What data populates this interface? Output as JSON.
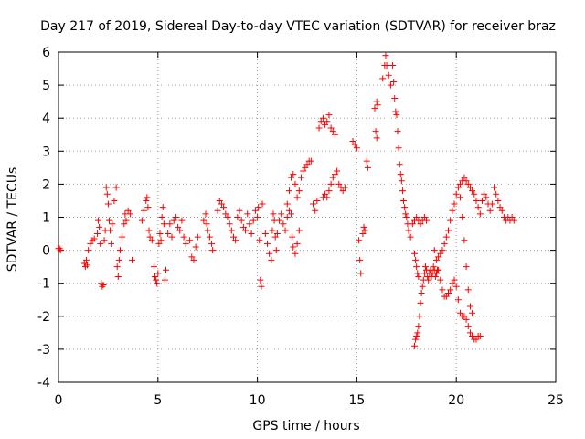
{
  "chart_data": {
    "type": "scatter",
    "title": "Day 217 of 2019, Sidereal Day-to-day VTEC variation (SDTVAR) for receiver braz",
    "xlabel": "GPS time / hours",
    "ylabel": "SDTVAR / TECUs",
    "xlim": [
      0,
      25
    ],
    "ylim": [
      -4,
      6
    ],
    "xticks": [
      0,
      5,
      10,
      15,
      20,
      25
    ],
    "yticks": [
      -4,
      -3,
      -2,
      -1,
      0,
      1,
      2,
      3,
      4,
      5,
      6
    ],
    "xtick_labels": [
      "0",
      "5",
      "10",
      "15",
      "20",
      "25"
    ],
    "ytick_labels": [
      "-4",
      "-3",
      "-2",
      "-1",
      "0",
      "1",
      "2",
      "3",
      "4",
      "5",
      "6"
    ],
    "grid": true,
    "marker": "+",
    "marker_color": "#ff0000",
    "series": [
      {
        "name": "SDTVAR",
        "points": [
          [
            0.0,
            0.05
          ],
          [
            0.05,
            0.05
          ],
          [
            0.1,
            0.0
          ],
          [
            1.3,
            -0.4
          ],
          [
            1.35,
            -0.5
          ],
          [
            1.4,
            -0.3
          ],
          [
            1.45,
            -0.45
          ],
          [
            1.5,
            0.0
          ],
          [
            1.6,
            0.2
          ],
          [
            1.7,
            0.3
          ],
          [
            1.8,
            0.35
          ],
          [
            1.95,
            0.5
          ],
          [
            2.0,
            0.9
          ],
          [
            2.05,
            0.7
          ],
          [
            2.1,
            0.2
          ],
          [
            2.15,
            -1.0
          ],
          [
            2.2,
            -1.1
          ],
          [
            2.25,
            -1.05
          ],
          [
            2.3,
            0.3
          ],
          [
            2.35,
            0.6
          ],
          [
            2.4,
            1.9
          ],
          [
            2.45,
            1.7
          ],
          [
            2.5,
            1.4
          ],
          [
            2.55,
            0.9
          ],
          [
            2.6,
            0.6
          ],
          [
            2.65,
            0.2
          ],
          [
            2.7,
            0.8
          ],
          [
            2.8,
            1.5
          ],
          [
            2.9,
            1.9
          ],
          [
            2.95,
            -0.5
          ],
          [
            3.0,
            -0.8
          ],
          [
            3.05,
            -0.3
          ],
          [
            3.1,
            0.0
          ],
          [
            3.2,
            0.4
          ],
          [
            3.3,
            0.8
          ],
          [
            3.35,
            1.1
          ],
          [
            3.4,
            0.9
          ],
          [
            3.5,
            1.2
          ],
          [
            3.6,
            1.1
          ],
          [
            3.7,
            -0.3
          ],
          [
            4.2,
            0.9
          ],
          [
            4.3,
            1.2
          ],
          [
            4.4,
            1.5
          ],
          [
            4.45,
            1.6
          ],
          [
            4.5,
            1.3
          ],
          [
            4.55,
            0.6
          ],
          [
            4.6,
            0.4
          ],
          [
            4.7,
            0.3
          ],
          [
            4.8,
            -0.5
          ],
          [
            4.85,
            -0.8
          ],
          [
            4.9,
            -0.9
          ],
          [
            4.95,
            -1.0
          ],
          [
            5.0,
            -0.7
          ],
          [
            5.05,
            0.2
          ],
          [
            5.1,
            0.5
          ],
          [
            5.15,
            0.3
          ],
          [
            5.2,
            1.0
          ],
          [
            5.25,
            1.3
          ],
          [
            5.3,
            0.8
          ],
          [
            5.35,
            -0.9
          ],
          [
            5.4,
            -0.6
          ],
          [
            5.5,
            0.5
          ],
          [
            5.6,
            0.8
          ],
          [
            5.7,
            0.4
          ],
          [
            5.8,
            0.9
          ],
          [
            5.9,
            1.0
          ],
          [
            6.0,
            0.7
          ],
          [
            6.1,
            0.6
          ],
          [
            6.2,
            0.9
          ],
          [
            6.3,
            0.4
          ],
          [
            6.4,
            0.2
          ],
          [
            6.6,
            0.3
          ],
          [
            6.7,
            -0.2
          ],
          [
            6.8,
            -0.3
          ],
          [
            6.9,
            0.1
          ],
          [
            7.0,
            0.4
          ],
          [
            7.3,
            0.9
          ],
          [
            7.4,
            1.1
          ],
          [
            7.45,
            0.8
          ],
          [
            7.5,
            0.6
          ],
          [
            7.6,
            0.4
          ],
          [
            7.7,
            0.2
          ],
          [
            7.75,
            0.0
          ],
          [
            8.0,
            1.2
          ],
          [
            8.1,
            1.5
          ],
          [
            8.2,
            1.4
          ],
          [
            8.3,
            1.3
          ],
          [
            8.4,
            1.1
          ],
          [
            8.5,
            1.0
          ],
          [
            8.6,
            0.8
          ],
          [
            8.7,
            0.6
          ],
          [
            8.8,
            0.4
          ],
          [
            8.9,
            0.3
          ],
          [
            9.0,
            1.0
          ],
          [
            9.1,
            1.2
          ],
          [
            9.2,
            0.9
          ],
          [
            9.3,
            0.7
          ],
          [
            9.4,
            0.6
          ],
          [
            9.5,
            1.1
          ],
          [
            9.6,
            0.8
          ],
          [
            9.7,
            0.5
          ],
          [
            9.8,
            0.9
          ],
          [
            9.9,
            1.2
          ],
          [
            10.0,
            1.0
          ],
          [
            10.05,
            1.3
          ],
          [
            10.1,
            0.3
          ],
          [
            10.15,
            -0.9
          ],
          [
            10.2,
            -1.1
          ],
          [
            10.25,
            1.4
          ],
          [
            10.4,
            0.5
          ],
          [
            10.5,
            0.2
          ],
          [
            10.6,
            -0.1
          ],
          [
            10.7,
            -0.3
          ],
          [
            10.75,
            0.6
          ],
          [
            10.8,
            1.1
          ],
          [
            10.85,
            0.9
          ],
          [
            10.9,
            0.4
          ],
          [
            10.95,
            0.0
          ],
          [
            11.0,
            0.5
          ],
          [
            11.1,
            0.9
          ],
          [
            11.2,
            1.1
          ],
          [
            11.3,
            0.8
          ],
          [
            11.4,
            0.6
          ],
          [
            11.5,
            1.0
          ],
          [
            11.6,
            1.2
          ],
          [
            11.7,
            1.1
          ],
          [
            11.75,
            0.4
          ],
          [
            11.8,
            0.1
          ],
          [
            11.9,
            -0.1
          ],
          [
            12.0,
            0.2
          ],
          [
            12.1,
            0.6
          ],
          [
            11.5,
            1.4
          ],
          [
            11.6,
            1.8
          ],
          [
            11.7,
            2.2
          ],
          [
            11.8,
            2.3
          ],
          [
            11.9,
            2.0
          ],
          [
            12.0,
            1.6
          ],
          [
            12.1,
            1.8
          ],
          [
            12.2,
            2.2
          ],
          [
            12.3,
            2.4
          ],
          [
            12.4,
            2.5
          ],
          [
            12.5,
            2.6
          ],
          [
            12.6,
            2.7
          ],
          [
            12.7,
            2.7
          ],
          [
            12.8,
            1.4
          ],
          [
            12.9,
            1.2
          ],
          [
            13.0,
            1.5
          ],
          [
            13.1,
            3.7
          ],
          [
            13.2,
            3.9
          ],
          [
            13.3,
            4.0
          ],
          [
            13.4,
            3.8
          ],
          [
            13.5,
            3.9
          ],
          [
            13.6,
            4.1
          ],
          [
            13.7,
            3.7
          ],
          [
            13.8,
            3.6
          ],
          [
            13.9,
            3.5
          ],
          [
            13.3,
            1.6
          ],
          [
            13.4,
            1.7
          ],
          [
            13.5,
            1.6
          ],
          [
            13.6,
            1.8
          ],
          [
            13.7,
            2.0
          ],
          [
            13.8,
            2.2
          ],
          [
            13.9,
            2.3
          ],
          [
            14.0,
            2.4
          ],
          [
            14.1,
            2.0
          ],
          [
            14.2,
            1.9
          ],
          [
            14.3,
            1.8
          ],
          [
            14.4,
            1.9
          ],
          [
            14.8,
            3.3
          ],
          [
            14.9,
            3.2
          ],
          [
            15.0,
            3.1
          ],
          [
            15.1,
            0.3
          ],
          [
            15.15,
            -0.3
          ],
          [
            15.2,
            -0.7
          ],
          [
            15.3,
            0.5
          ],
          [
            15.35,
            0.7
          ],
          [
            15.4,
            0.6
          ],
          [
            15.5,
            2.7
          ],
          [
            15.55,
            2.5
          ],
          [
            15.9,
            4.3
          ],
          [
            16.0,
            4.5
          ],
          [
            16.05,
            4.4
          ],
          [
            15.95,
            3.6
          ],
          [
            16.0,
            3.4
          ],
          [
            16.3,
            5.2
          ],
          [
            16.4,
            5.6
          ],
          [
            16.45,
            5.9
          ],
          [
            16.5,
            5.6
          ],
          [
            16.6,
            5.3
          ],
          [
            16.7,
            5.0
          ],
          [
            16.8,
            5.6
          ],
          [
            16.85,
            5.1
          ],
          [
            16.9,
            4.6
          ],
          [
            16.95,
            4.2
          ],
          [
            17.0,
            4.1
          ],
          [
            17.05,
            3.6
          ],
          [
            17.1,
            3.1
          ],
          [
            17.15,
            2.6
          ],
          [
            17.2,
            2.3
          ],
          [
            17.25,
            2.1
          ],
          [
            17.3,
            1.8
          ],
          [
            17.35,
            1.5
          ],
          [
            17.4,
            1.3
          ],
          [
            17.45,
            1.1
          ],
          [
            17.5,
            1.0
          ],
          [
            17.55,
            0.8
          ],
          [
            17.6,
            0.6
          ],
          [
            17.7,
            0.4
          ],
          [
            17.8,
            0.8
          ],
          [
            17.9,
            0.9
          ],
          [
            18.0,
            1.0
          ],
          [
            18.1,
            0.9
          ],
          [
            18.2,
            0.8
          ],
          [
            18.3,
            0.9
          ],
          [
            18.4,
            1.0
          ],
          [
            18.5,
            0.9
          ],
          [
            17.9,
            -2.9
          ],
          [
            17.95,
            -2.7
          ],
          [
            18.0,
            -2.6
          ],
          [
            18.05,
            -2.5
          ],
          [
            18.1,
            -2.3
          ],
          [
            18.15,
            -2.0
          ],
          [
            18.2,
            -1.6
          ],
          [
            18.25,
            -1.3
          ],
          [
            18.3,
            -1.1
          ],
          [
            18.35,
            -0.9
          ],
          [
            18.4,
            -0.7
          ],
          [
            18.45,
            -0.5
          ],
          [
            18.5,
            -0.6
          ],
          [
            18.55,
            -0.8
          ],
          [
            18.6,
            -0.9
          ],
          [
            18.65,
            -0.7
          ],
          [
            18.7,
            -0.6
          ],
          [
            18.75,
            -0.8
          ],
          [
            18.8,
            -0.7
          ],
          [
            18.85,
            -0.5
          ],
          [
            18.9,
            -0.6
          ],
          [
            18.95,
            -0.8
          ],
          [
            19.0,
            -0.7
          ],
          [
            19.05,
            -0.6
          ],
          [
            17.9,
            -0.1
          ],
          [
            17.95,
            -0.3
          ],
          [
            18.0,
            -0.5
          ],
          [
            18.05,
            -0.7
          ],
          [
            18.1,
            -0.8
          ],
          [
            19.1,
            -0.2
          ],
          [
            19.2,
            -0.1
          ],
          [
            19.3,
            0.0
          ],
          [
            19.4,
            0.2
          ],
          [
            19.5,
            0.4
          ],
          [
            19.6,
            0.6
          ],
          [
            19.7,
            0.9
          ],
          [
            19.8,
            1.2
          ],
          [
            19.9,
            1.4
          ],
          [
            20.0,
            1.7
          ],
          [
            20.1,
            1.9
          ],
          [
            20.2,
            2.0
          ],
          [
            20.3,
            2.1
          ],
          [
            20.4,
            2.2
          ],
          [
            20.5,
            2.1
          ],
          [
            20.6,
            2.0
          ],
          [
            20.7,
            1.9
          ],
          [
            20.8,
            1.8
          ],
          [
            20.9,
            1.7
          ],
          [
            21.0,
            1.5
          ],
          [
            21.1,
            1.3
          ],
          [
            21.2,
            1.1
          ],
          [
            18.9,
            0.0
          ],
          [
            19.0,
            -0.3
          ],
          [
            19.1,
            -0.6
          ],
          [
            19.2,
            -0.9
          ],
          [
            19.3,
            -1.2
          ],
          [
            19.4,
            -1.4
          ],
          [
            19.5,
            -1.4
          ],
          [
            19.6,
            -1.3
          ],
          [
            19.7,
            -1.2
          ],
          [
            19.8,
            -1.0
          ],
          [
            19.9,
            -0.9
          ],
          [
            20.0,
            -1.1
          ],
          [
            20.1,
            -1.5
          ],
          [
            20.2,
            -1.9
          ],
          [
            20.3,
            -2.0
          ],
          [
            20.4,
            -2.0
          ],
          [
            20.5,
            -2.1
          ],
          [
            20.6,
            -2.3
          ],
          [
            20.7,
            -2.5
          ],
          [
            20.8,
            -2.6
          ],
          [
            20.9,
            -2.7
          ],
          [
            21.0,
            -2.7
          ],
          [
            21.1,
            -2.6
          ],
          [
            21.2,
            -2.6
          ],
          [
            20.2,
            1.6
          ],
          [
            20.3,
            1.0
          ],
          [
            20.4,
            0.3
          ],
          [
            20.5,
            -0.5
          ],
          [
            20.6,
            -1.2
          ],
          [
            20.7,
            -1.7
          ],
          [
            20.8,
            -1.9
          ],
          [
            21.3,
            1.5
          ],
          [
            21.4,
            1.7
          ],
          [
            21.5,
            1.6
          ],
          [
            21.6,
            1.4
          ],
          [
            21.7,
            1.2
          ],
          [
            21.8,
            1.4
          ],
          [
            21.9,
            1.9
          ],
          [
            22.0,
            1.7
          ],
          [
            22.1,
            1.5
          ],
          [
            22.2,
            1.3
          ],
          [
            22.3,
            1.2
          ],
          [
            22.4,
            1.0
          ],
          [
            22.5,
            0.9
          ],
          [
            22.6,
            1.0
          ],
          [
            22.7,
            0.9
          ],
          [
            22.8,
            1.0
          ],
          [
            22.9,
            0.9
          ]
        ]
      }
    ]
  }
}
